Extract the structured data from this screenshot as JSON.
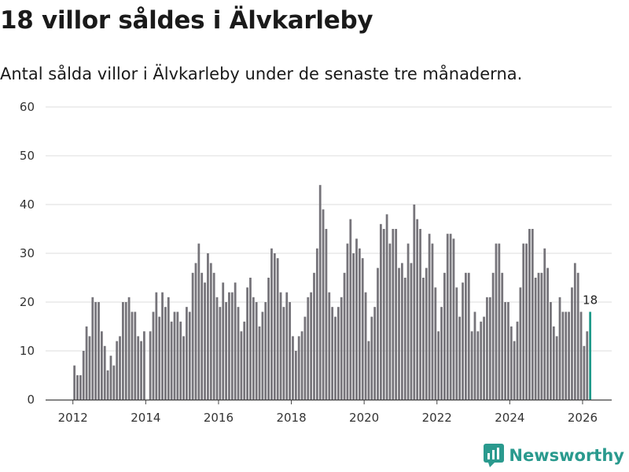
{
  "title": "18 villor såldes i Älvkarleby",
  "subtitle": "Antal sålda villor i Älvkarleby under de senaste tre månaderna.",
  "brand": "Newsworthy",
  "colors": {
    "bar": "#76747a",
    "highlight": "#1f9a8a",
    "brand": "#2a9a8e",
    "grid": "#dddddd"
  },
  "chart_data": {
    "type": "bar",
    "title": "18 villor såldes i Älvkarleby",
    "xlabel": "",
    "ylabel": "",
    "ylim": [
      0,
      60
    ],
    "yticks": [
      0,
      10,
      20,
      30,
      40,
      50,
      60
    ],
    "xlim": [
      2011.25,
      2026.8
    ],
    "xticks": [
      2012,
      2014,
      2016,
      2018,
      2020,
      2022,
      2024,
      2026
    ],
    "start": "2012-01",
    "highlight_label": "18",
    "values": [
      7,
      5,
      5,
      10,
      15,
      13,
      21,
      20,
      20,
      14,
      11,
      6,
      9,
      7,
      12,
      13,
      20,
      20,
      21,
      18,
      18,
      13,
      12,
      14,
      0,
      14,
      18,
      22,
      17,
      22,
      19,
      21,
      16,
      18,
      18,
      16,
      13,
      19,
      18,
      26,
      28,
      32,
      26,
      24,
      30,
      28,
      26,
      21,
      19,
      24,
      20,
      22,
      22,
      24,
      19,
      14,
      16,
      23,
      25,
      21,
      20,
      15,
      18,
      20,
      25,
      31,
      30,
      29,
      22,
      19,
      22,
      20,
      13,
      10,
      13,
      14,
      17,
      21,
      22,
      26,
      31,
      44,
      39,
      35,
      22,
      19,
      17,
      19,
      21,
      26,
      32,
      37,
      30,
      33,
      31,
      29,
      22,
      12,
      17,
      19,
      27,
      36,
      35,
      38,
      32,
      35,
      35,
      27,
      28,
      25,
      32,
      28,
      40,
      37,
      35,
      25,
      27,
      34,
      32,
      23,
      14,
      19,
      26,
      34,
      34,
      33,
      23,
      17,
      24,
      26,
      26,
      14,
      18,
      14,
      16,
      17,
      21,
      21,
      26,
      32,
      32,
      26,
      20,
      20,
      15,
      12,
      16,
      23,
      32,
      32,
      35,
      35,
      25,
      26,
      26,
      31,
      27,
      20,
      15,
      13,
      21,
      18,
      18,
      18,
      23,
      28,
      26,
      18,
      11,
      14,
      18
    ]
  }
}
